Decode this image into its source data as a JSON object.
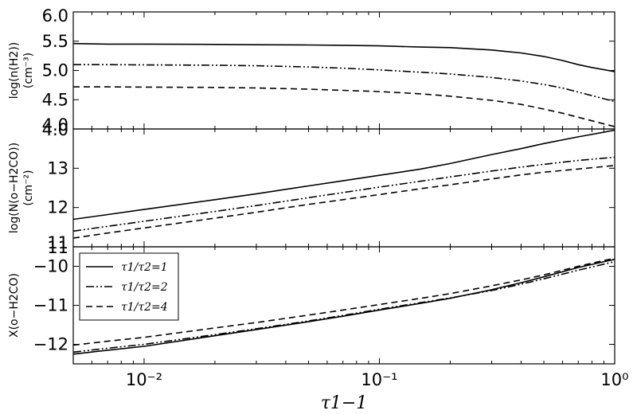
{
  "chart_data": {
    "type": "line",
    "xscale": "log",
    "xlim": [
      0.005,
      1.0
    ],
    "xlabel": "τ1−1",
    "x_tick_labels": [
      "10⁻²",
      "10⁻¹",
      "10⁰"
    ],
    "line_styles": [
      "solid",
      "dash-dot-dot",
      "dashed"
    ],
    "panels": [
      {
        "ylabel_line1": "log(n(H2))",
        "ylabel_line2": "(cm⁻³)",
        "ylim": [
          4.0,
          6.0
        ],
        "yticks": [
          "4.0",
          "4.5",
          "5.0",
          "5.5",
          "6.0"
        ],
        "ytick_values": [
          4.0,
          4.5,
          5.0,
          5.5,
          6.0
        ],
        "series": [
          {
            "x": [
              0.005,
              0.007,
              0.01,
              0.02,
              0.03,
              0.05,
              0.07,
              0.1,
              0.15,
              0.2,
              0.3,
              0.4,
              0.5,
              0.6,
              0.7,
              0.8,
              1.0
            ],
            "y": [
              5.46,
              5.45,
              5.45,
              5.445,
              5.44,
              5.435,
              5.43,
              5.42,
              5.4,
              5.39,
              5.35,
              5.3,
              5.24,
              5.17,
              5.1,
              5.05,
              4.98
            ]
          },
          {
            "x": [
              0.005,
              0.007,
              0.01,
              0.02,
              0.03,
              0.05,
              0.07,
              0.1,
              0.15,
              0.2,
              0.3,
              0.4,
              0.5,
              0.6,
              0.7,
              0.8,
              1.0
            ],
            "y": [
              5.1,
              5.1,
              5.095,
              5.09,
              5.08,
              5.06,
              5.04,
              5.01,
              4.97,
              4.94,
              4.88,
              4.82,
              4.76,
              4.7,
              4.63,
              4.57,
              4.47
            ]
          },
          {
            "x": [
              0.005,
              0.007,
              0.01,
              0.02,
              0.03,
              0.05,
              0.07,
              0.1,
              0.15,
              0.2,
              0.3,
              0.4,
              0.5,
              0.6,
              0.7,
              0.8,
              1.0
            ],
            "y": [
              4.72,
              4.72,
              4.715,
              4.71,
              4.7,
              4.68,
              4.66,
              4.64,
              4.6,
              4.56,
              4.49,
              4.42,
              4.34,
              4.27,
              4.2,
              4.14,
              4.04
            ]
          }
        ]
      },
      {
        "ylabel_line1": "log(N(o−H2CO))",
        "ylabel_line2": "(cm⁻²)",
        "ylim": [
          11.0,
          14.0
        ],
        "yticks": [
          "11",
          "12",
          "13"
        ],
        "ytick_values": [
          11,
          12,
          13
        ],
        "ytop_label": "4.0",
        "series": [
          {
            "x": [
              0.005,
              0.007,
              0.01,
              0.02,
              0.03,
              0.05,
              0.07,
              0.1,
              0.15,
              0.2,
              0.3,
              0.4,
              0.5,
              0.7,
              1.0
            ],
            "y": [
              11.7,
              11.82,
              11.95,
              12.2,
              12.35,
              12.55,
              12.68,
              12.82,
              12.98,
              13.12,
              13.35,
              13.5,
              13.63,
              13.8,
              13.97
            ]
          },
          {
            "x": [
              0.005,
              0.007,
              0.01,
              0.02,
              0.03,
              0.05,
              0.07,
              0.1,
              0.15,
              0.2,
              0.3,
              0.4,
              0.5,
              0.7,
              1.0
            ],
            "y": [
              11.4,
              11.52,
              11.65,
              11.9,
              12.05,
              12.25,
              12.38,
              12.52,
              12.67,
              12.78,
              12.93,
              13.03,
              13.1,
              13.2,
              13.28
            ]
          },
          {
            "x": [
              0.005,
              0.007,
              0.01,
              0.02,
              0.03,
              0.05,
              0.07,
              0.1,
              0.15,
              0.2,
              0.3,
              0.4,
              0.5,
              0.7,
              1.0
            ],
            "y": [
              11.22,
              11.35,
              11.48,
              11.73,
              11.88,
              12.08,
              12.2,
              12.33,
              12.48,
              12.58,
              12.73,
              12.83,
              12.9,
              12.98,
              13.07
            ]
          }
        ]
      },
      {
        "ylabel_line1": "X(o−H2CO)",
        "ylabel_line2": "",
        "ylim": [
          -12.5,
          -9.5
        ],
        "yticks": [
          "−12",
          "−11",
          "−10"
        ],
        "ytick_values": [
          -12,
          -11,
          -10
        ],
        "ytop_label": "11",
        "series": [
          {
            "x": [
              0.005,
              0.007,
              0.01,
              0.02,
              0.03,
              0.05,
              0.07,
              0.1,
              0.15,
              0.2,
              0.3,
              0.4,
              0.5,
              0.7,
              1.0
            ],
            "y": [
              -12.25,
              -12.15,
              -12.05,
              -11.78,
              -11.62,
              -11.42,
              -11.28,
              -11.12,
              -10.95,
              -10.82,
              -10.6,
              -10.42,
              -10.27,
              -10.03,
              -9.82
            ]
          },
          {
            "x": [
              0.005,
              0.007,
              0.01,
              0.02,
              0.03,
              0.05,
              0.07,
              0.1,
              0.15,
              0.2,
              0.3,
              0.4,
              0.5,
              0.7,
              1.0
            ],
            "y": [
              -12.2,
              -12.1,
              -12.0,
              -11.75,
              -11.6,
              -11.4,
              -11.26,
              -11.1,
              -10.93,
              -10.81,
              -10.62,
              -10.46,
              -10.32,
              -10.1,
              -9.88
            ]
          },
          {
            "x": [
              0.005,
              0.007,
              0.01,
              0.02,
              0.03,
              0.05,
              0.07,
              0.1,
              0.15,
              0.2,
              0.3,
              0.4,
              0.5,
              0.7,
              1.0
            ],
            "y": [
              -12.02,
              -11.92,
              -11.82,
              -11.58,
              -11.44,
              -11.25,
              -11.12,
              -10.98,
              -10.82,
              -10.7,
              -10.5,
              -10.35,
              -10.22,
              -10.0,
              -9.79
            ]
          }
        ]
      }
    ],
    "legend": {
      "placement": "top-left",
      "panel": 2,
      "entries": [
        "τ1/τ2=1",
        "τ1/τ2=2",
        "τ1/τ2=4"
      ]
    }
  }
}
